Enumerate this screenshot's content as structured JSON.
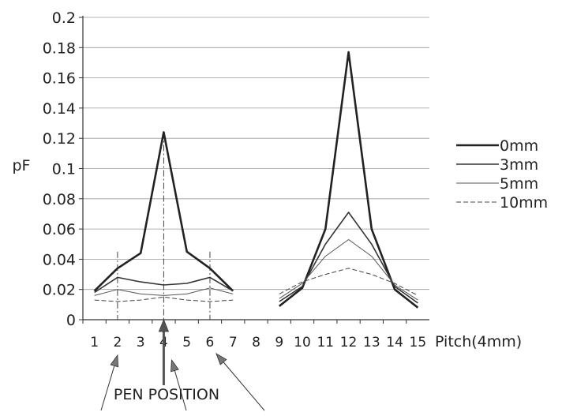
{
  "chart_data": {
    "type": "line",
    "ylabel": "pF",
    "xlabel": "Pitch(4mm)",
    "ylim": [
      0,
      0.2
    ],
    "y_ticks": [
      "0",
      "0.02",
      "0.04",
      "0.06",
      "0.08",
      "0.1",
      "0.12",
      "0.14",
      "0.16",
      "0.18",
      "0.2"
    ],
    "categories": [
      "1",
      "2",
      "3",
      "4",
      "5",
      "6",
      "7",
      "8",
      "9",
      "10",
      "11",
      "12",
      "13",
      "14",
      "15"
    ],
    "grid": true,
    "legend_position": "right",
    "series": [
      {
        "name": "0mm",
        "style": "solid-thick",
        "values": [
          0.019,
          0.034,
          0.044,
          0.124,
          0.045,
          0.034,
          0.019,
          null,
          0.009,
          0.021,
          0.06,
          0.177,
          0.06,
          0.02,
          0.008
        ]
      },
      {
        "name": "3mm",
        "style": "solid",
        "values": [
          0.018,
          0.028,
          0.025,
          0.023,
          0.024,
          0.028,
          0.019,
          null,
          0.012,
          0.022,
          0.05,
          0.071,
          0.05,
          0.022,
          0.011
        ]
      },
      {
        "name": "5mm",
        "style": "solid-thin",
        "values": [
          0.016,
          0.02,
          0.017,
          0.016,
          0.017,
          0.021,
          0.017,
          null,
          0.014,
          0.024,
          0.042,
          0.053,
          0.042,
          0.023,
          0.013
        ]
      },
      {
        "name": "10mm",
        "style": "dashed",
        "values": [
          0.013,
          0.012,
          0.013,
          0.015,
          0.013,
          0.012,
          0.013,
          null,
          0.017,
          0.025,
          0.03,
          0.034,
          0.03,
          0.024,
          0.016
        ]
      }
    ],
    "annotations": {
      "pen_position_label": "PEN POSITION",
      "marker_categories": [
        "2",
        "4",
        "6"
      ]
    }
  }
}
